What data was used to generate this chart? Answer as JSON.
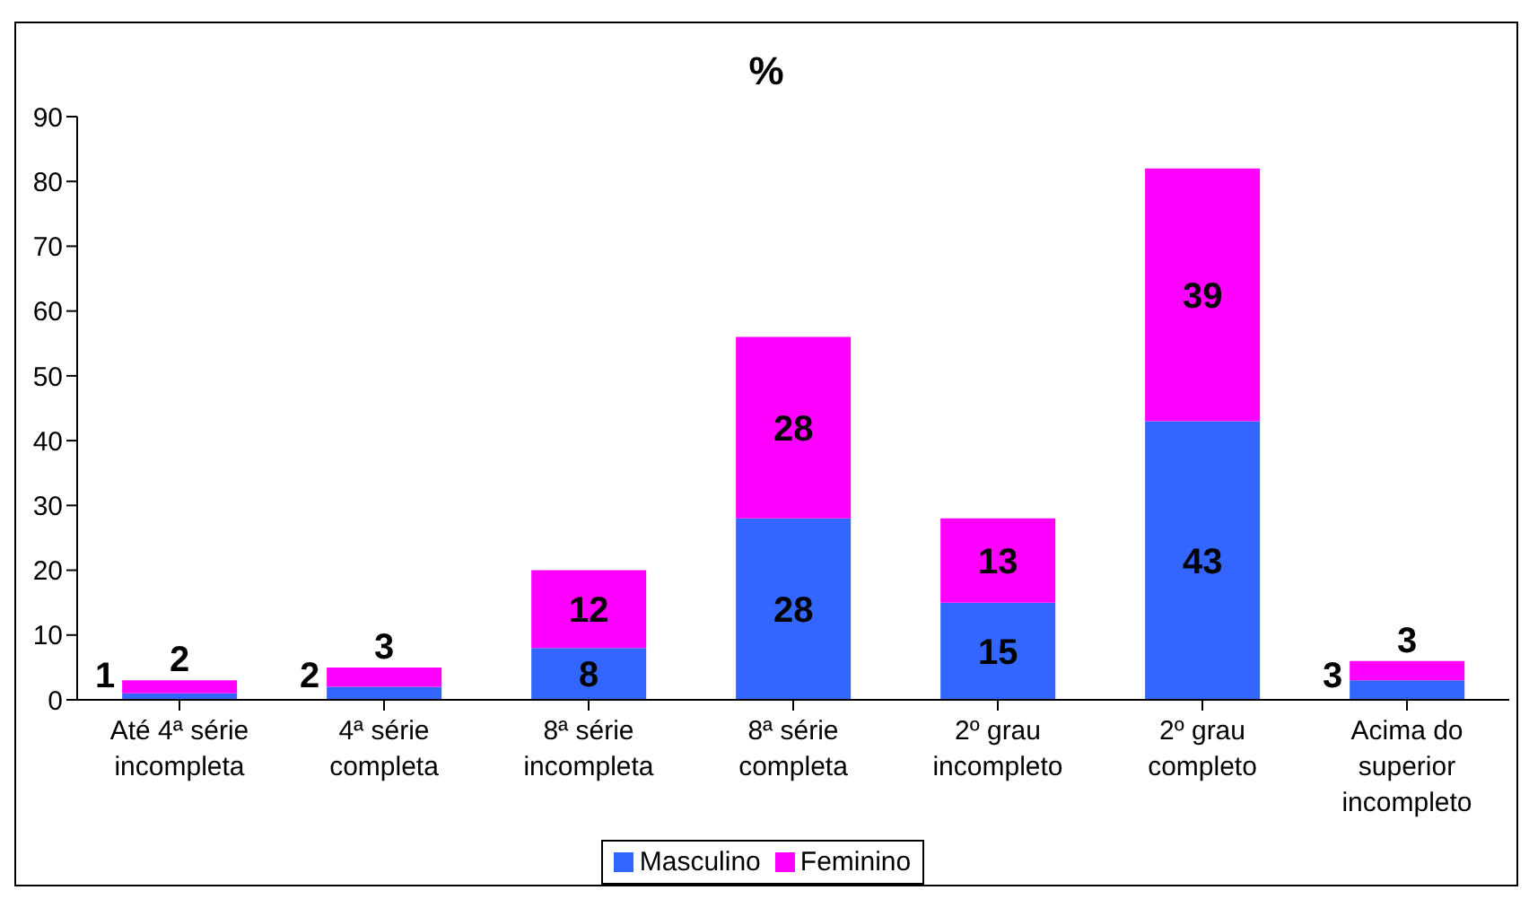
{
  "chart_data": {
    "type": "bar",
    "title": "%",
    "categories": [
      "Até 4ª série incompleta",
      "4ª série completa",
      "8ª série incompleta",
      "8ª série completa",
      "2º grau incompleto",
      "2º grau completo",
      "Acima do superior incompleto"
    ],
    "series": [
      {
        "name": "Masculino",
        "color": "#3366ff",
        "values": [
          1,
          2,
          8,
          28,
          15,
          43,
          3
        ]
      },
      {
        "name": "Feminino",
        "color": "#ff00ff",
        "values": [
          2,
          3,
          12,
          28,
          13,
          39,
          3
        ]
      }
    ],
    "stacked": true,
    "data_labels": true,
    "ylim": [
      0,
      90
    ],
    "yticks": [
      0,
      10,
      20,
      30,
      40,
      50,
      60,
      70,
      80,
      90
    ],
    "grid": false,
    "legend": "bottom"
  }
}
